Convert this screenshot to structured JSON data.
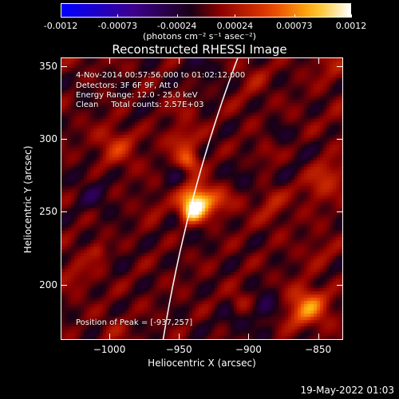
{
  "colorbar": {
    "tick_labels": [
      "-0.0012",
      "-0.00073",
      "-0.00024",
      "0.00024",
      "0.00073",
      "0.0012"
    ],
    "tick_values": [
      -0.0012,
      -0.00073,
      -0.00024,
      0.00024,
      0.00073,
      0.0012
    ],
    "range": [
      -0.0012,
      0.0012
    ],
    "units": "(photons cm⁻² s⁻¹ asec⁻²)",
    "colormap": "blue-purple-red-yellow-white"
  },
  "title": "Reconstructed RHESSI Image",
  "info": {
    "line1": "4-Nov-2014 00:57:56.000 to 01:02:12.000",
    "line2": "Detectors: 3F 6F 9F, Att 0",
    "line3": "Energy Range: 12.0 - 25.0 keV",
    "line4": "Clean     Total counts: 2.57E+03",
    "peak": "Position of Peak = [-937,257]"
  },
  "axes": {
    "xlabel": "Heliocentric X (arcsec)",
    "ylabel": "Heliocentric Y (arcsec)",
    "xlim": [
      -1035,
      -832
    ],
    "ylim": [
      162,
      356
    ],
    "x_ticks": [
      -1000,
      -950,
      -900,
      -850
    ],
    "x_tick_labels": [
      "−1000",
      "−950",
      "−900",
      "−850"
    ],
    "y_ticks": [
      200,
      250,
      300,
      350
    ],
    "y_tick_labels": [
      "200",
      "250",
      "300",
      "350"
    ]
  },
  "peak": {
    "x": -937,
    "y": 257
  },
  "footer": {
    "date": "19-May-2022 01:03"
  }
}
